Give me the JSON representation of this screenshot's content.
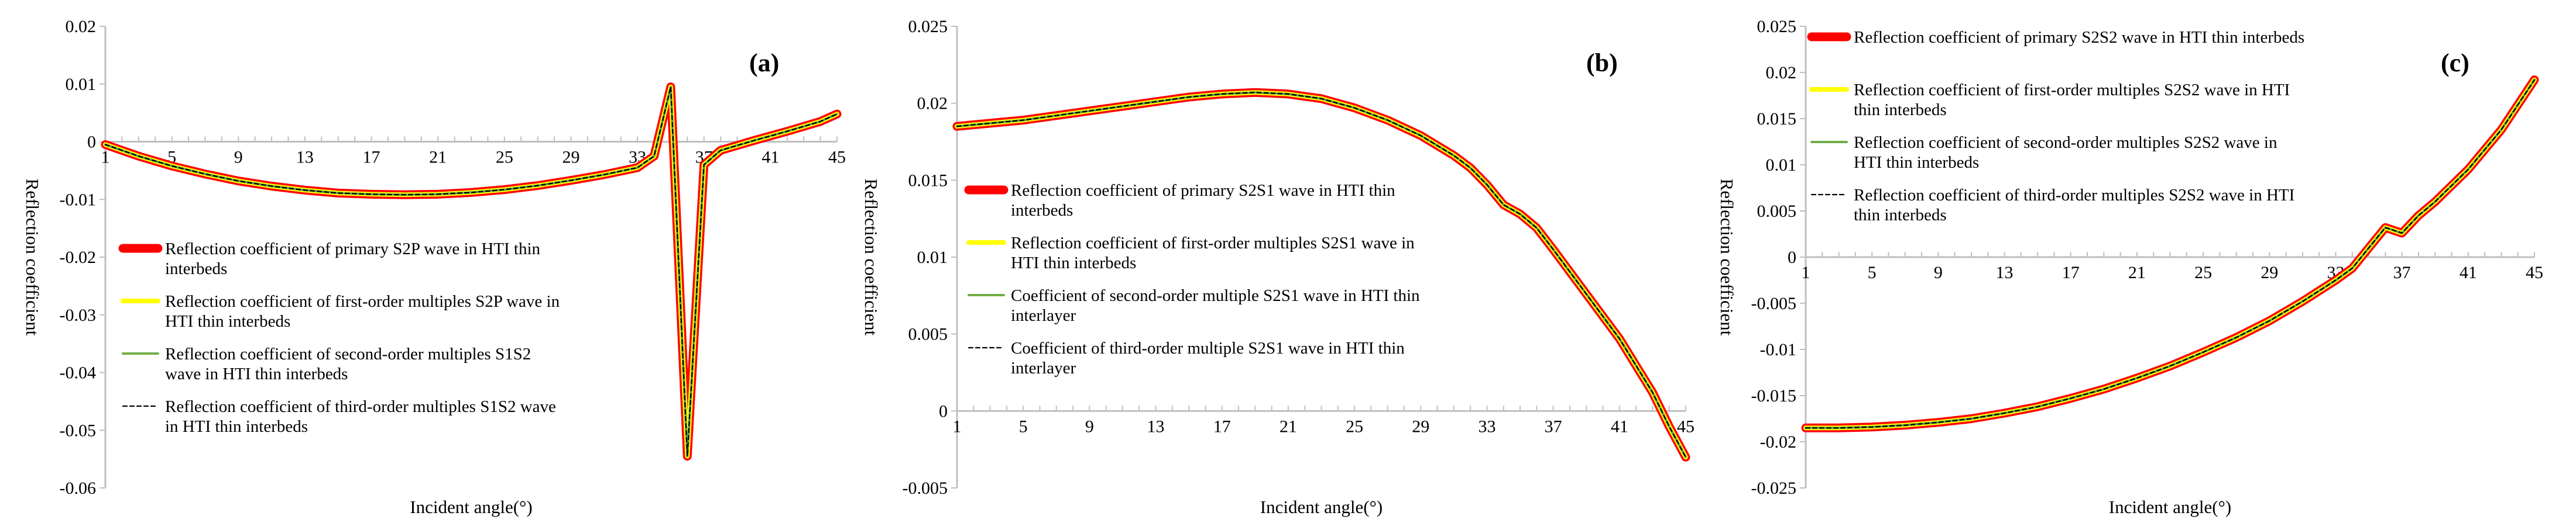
{
  "chart_data": [
    {
      "type": "line",
      "panel_label": "(a)",
      "xlabel": "Incident angle(°)",
      "ylabel": "Reflection coefficient",
      "ylim": [
        -0.06,
        0.02
      ],
      "yticks": [
        0.02,
        0.01,
        0,
        -0.01,
        -0.02,
        -0.03,
        -0.04,
        -0.05,
        -0.06
      ],
      "ytick_labels": [
        "0.02",
        "0.01",
        "0",
        "-0.01",
        "-0.02",
        "-0.03",
        "-0.04",
        "-0.05",
        "-0.06"
      ],
      "xlim": [
        1,
        45
      ],
      "xticks": [
        1,
        5,
        9,
        13,
        17,
        21,
        25,
        29,
        33,
        37,
        41,
        45
      ],
      "xtick_labels": [
        "1",
        "5",
        "9",
        "13",
        "17",
        "21",
        "25",
        "29",
        "33",
        "37",
        "41",
        "45"
      ],
      "x": [
        1,
        3,
        5,
        7,
        9,
        11,
        13,
        15,
        17,
        19,
        21,
        23,
        25,
        27,
        29,
        31,
        33,
        34,
        35,
        36,
        37,
        38,
        40,
        42,
        44,
        45
      ],
      "series": [
        {
          "name": "Reflection coefficient of primary S2P wave in HTI thin interbeds",
          "style": "thick-red",
          "values": [
            -0.0005,
            -0.0025,
            -0.0042,
            -0.0056,
            -0.0068,
            -0.0077,
            -0.0084,
            -0.0089,
            -0.0091,
            -0.0092,
            -0.0091,
            -0.0088,
            -0.0083,
            -0.0076,
            -0.0067,
            -0.0057,
            -0.0045,
            -0.0025,
            0.0095,
            -0.0545,
            -0.004,
            -0.0015,
            0.0002,
            0.0018,
            0.0035,
            0.0048
          ]
        },
        {
          "name": "Reflection coefficient of first-order multiples S2P wave in HTI thin interbeds",
          "style": "yellow",
          "values": [
            -0.0005,
            -0.0025,
            -0.0042,
            -0.0056,
            -0.0068,
            -0.0077,
            -0.0084,
            -0.0089,
            -0.0091,
            -0.0092,
            -0.0091,
            -0.0088,
            -0.0083,
            -0.0076,
            -0.0067,
            -0.0057,
            -0.0045,
            -0.0025,
            0.0095,
            -0.0545,
            -0.004,
            -0.0015,
            0.0002,
            0.0018,
            0.0035,
            0.0048
          ]
        },
        {
          "name": "Reflection coefficient of second-order multiples S1S2 wave in HTI thin interbeds",
          "style": "green",
          "values": [
            -0.0005,
            -0.0025,
            -0.0042,
            -0.0056,
            -0.0068,
            -0.0077,
            -0.0084,
            -0.0089,
            -0.0091,
            -0.0092,
            -0.0091,
            -0.0088,
            -0.0083,
            -0.0076,
            -0.0067,
            -0.0057,
            -0.0045,
            -0.0025,
            0.0095,
            -0.0545,
            -0.004,
            -0.0015,
            0.0002,
            0.0018,
            0.0035,
            0.0048
          ]
        },
        {
          "name": "Reflection coefficient of third-order multiples S1S2 wave in HTI thin interbeds",
          "style": "black-dashed",
          "values": [
            -0.0005,
            -0.0025,
            -0.0042,
            -0.0056,
            -0.0068,
            -0.0077,
            -0.0084,
            -0.0089,
            -0.0091,
            -0.0092,
            -0.0091,
            -0.0088,
            -0.0083,
            -0.0076,
            -0.0067,
            -0.0057,
            -0.0045,
            -0.0025,
            0.0095,
            -0.0545,
            -0.004,
            -0.0015,
            0.0002,
            0.0018,
            0.0035,
            0.0048
          ]
        }
      ],
      "legend_lines": [
        [
          "Reflection coefficient of primary S2P wave in HTI thin",
          "interbeds"
        ],
        [
          "Reflection coefficient of first-order multiples S2P wave in",
          "HTI thin interbeds"
        ],
        [
          "Reflection coefficient of second-order multiples S1S2",
          "wave in HTI thin interbeds"
        ],
        [
          "Reflection coefficient of third-order multiples S1S2 wave",
          "in HTI thin interbeds"
        ]
      ]
    },
    {
      "type": "line",
      "panel_label": "(b)",
      "xlabel": "Incident angle(°)",
      "ylabel": "Reflection coefficient",
      "ylim": [
        -0.005,
        0.025
      ],
      "yticks": [
        0.025,
        0.02,
        0.015,
        0.01,
        0.005,
        0,
        -0.005
      ],
      "ytick_labels": [
        "0.025",
        "0.02",
        "0.015",
        "0.01",
        "0.005",
        "0",
        "-0.005"
      ],
      "xlim": [
        1,
        45
      ],
      "xticks": [
        1,
        5,
        9,
        13,
        17,
        21,
        25,
        29,
        33,
        37,
        41,
        45
      ],
      "xtick_labels": [
        "1",
        "5",
        "9",
        "13",
        "17",
        "21",
        "25",
        "29",
        "33",
        "37",
        "41",
        "45"
      ],
      "x": [
        1,
        3,
        5,
        7,
        9,
        11,
        13,
        15,
        17,
        19,
        21,
        23,
        25,
        27,
        29,
        31,
        32,
        33,
        34,
        35,
        36,
        37,
        39,
        41,
        43,
        44,
        45
      ],
      "series": [
        {
          "name": "Reflection coefficient of primary S2S1 wave in HTI thin interbeds",
          "style": "thick-red",
          "values": [
            0.0185,
            0.0187,
            0.0189,
            0.0192,
            0.0195,
            0.0198,
            0.0201,
            0.0204,
            0.0206,
            0.0207,
            0.0206,
            0.0203,
            0.0197,
            0.0189,
            0.0179,
            0.0166,
            0.0158,
            0.0147,
            0.0134,
            0.0128,
            0.0119,
            0.0105,
            0.0076,
            0.0047,
            0.0012,
            -0.001,
            -0.003
          ]
        },
        {
          "name": "Reflection coefficient of first-order multiples S2S1 wave in HTI thin interbeds",
          "style": "yellow",
          "values": [
            0.0185,
            0.0187,
            0.0189,
            0.0192,
            0.0195,
            0.0198,
            0.0201,
            0.0204,
            0.0206,
            0.0207,
            0.0206,
            0.0203,
            0.0197,
            0.0189,
            0.0179,
            0.0166,
            0.0158,
            0.0147,
            0.0134,
            0.0128,
            0.0119,
            0.0105,
            0.0076,
            0.0047,
            0.0012,
            -0.001,
            -0.003
          ]
        },
        {
          "name": "Coefficient of second-order multiple S2S1 wave in HTI thin interlayer",
          "style": "green",
          "values": [
            0.0185,
            0.0187,
            0.0189,
            0.0192,
            0.0195,
            0.0198,
            0.0201,
            0.0204,
            0.0206,
            0.0207,
            0.0206,
            0.0203,
            0.0197,
            0.0189,
            0.0179,
            0.0166,
            0.0158,
            0.0147,
            0.0134,
            0.0128,
            0.0119,
            0.0105,
            0.0076,
            0.0047,
            0.0012,
            -0.001,
            -0.003
          ]
        },
        {
          "name": "Coefficient of third-order multiple S2S1 wave in HTI thin interlayer",
          "style": "black-dashed",
          "values": [
            0.0185,
            0.0187,
            0.0189,
            0.0192,
            0.0195,
            0.0198,
            0.0201,
            0.0204,
            0.0206,
            0.0207,
            0.0206,
            0.0203,
            0.0197,
            0.0189,
            0.0179,
            0.0166,
            0.0158,
            0.0147,
            0.0134,
            0.0128,
            0.0119,
            0.0105,
            0.0076,
            0.0047,
            0.0012,
            -0.001,
            -0.003
          ]
        }
      ],
      "legend_lines": [
        [
          "Reflection coefficient of primary S2S1 wave in HTI thin",
          "interbeds"
        ],
        [
          "Reflection coefficient of first-order multiples S2S1 wave in",
          "HTI thin interbeds"
        ],
        [
          "Coefficient of second-order multiple S2S1 wave in HTI thin",
          "interlayer"
        ],
        [
          "Coefficient of third-order multiple S2S1 wave in HTI thin",
          "interlayer"
        ]
      ]
    },
    {
      "type": "line",
      "panel_label": "(c)",
      "xlabel": "Incident angle(°)",
      "ylabel": "Reflection coefficient",
      "ylim": [
        -0.025,
        0.025
      ],
      "yticks": [
        0.025,
        0.02,
        0.015,
        0.01,
        0.005,
        0,
        -0.005,
        -0.01,
        -0.015,
        -0.02,
        -0.025
      ],
      "ytick_labels": [
        "0.025",
        "0.02",
        "0.015",
        "0.01",
        "0.005",
        "0",
        "-0.005",
        "-0.01",
        "-0.015",
        "-0.02",
        "-0.025"
      ],
      "xlim": [
        1,
        45
      ],
      "xticks": [
        1,
        5,
        9,
        13,
        17,
        21,
        25,
        29,
        33,
        37,
        41,
        45
      ],
      "xtick_labels": [
        "1",
        "5",
        "9",
        "13",
        "17",
        "21",
        "25",
        "29",
        "33",
        "37",
        "41",
        "45"
      ],
      "x": [
        1,
        3,
        5,
        7,
        9,
        11,
        13,
        15,
        17,
        19,
        21,
        23,
        25,
        27,
        29,
        31,
        33,
        34,
        35,
        36,
        37,
        38,
        39,
        41,
        43,
        45
      ],
      "series": [
        {
          "name": "Reflection coefficient of primary S2S2 wave in HTI thin interbeds",
          "style": "thick-red",
          "values": [
            -0.0185,
            -0.0185,
            -0.0184,
            -0.0182,
            -0.0179,
            -0.0175,
            -0.0169,
            -0.0162,
            -0.0153,
            -0.0143,
            -0.0131,
            -0.0118,
            -0.0103,
            -0.0087,
            -0.0069,
            -0.0048,
            -0.0025,
            -0.0012,
            0.001,
            0.0032,
            0.0026,
            0.0045,
            0.006,
            0.0095,
            0.0138,
            0.0192
          ]
        },
        {
          "name": "Reflection coefficient of first-order multiples S2S2 wave in HTI thin interbeds",
          "style": "yellow",
          "values": [
            -0.0185,
            -0.0185,
            -0.0184,
            -0.0182,
            -0.0179,
            -0.0175,
            -0.0169,
            -0.0162,
            -0.0153,
            -0.0143,
            -0.0131,
            -0.0118,
            -0.0103,
            -0.0087,
            -0.0069,
            -0.0048,
            -0.0025,
            -0.0012,
            0.001,
            0.0032,
            0.0026,
            0.0045,
            0.006,
            0.0095,
            0.0138,
            0.0192
          ]
        },
        {
          "name": "Reflection coefficient of second-order multiples S2S2 wave in HTI thin interbeds",
          "style": "green",
          "values": [
            -0.0185,
            -0.0185,
            -0.0184,
            -0.0182,
            -0.0179,
            -0.0175,
            -0.0169,
            -0.0162,
            -0.0153,
            -0.0143,
            -0.0131,
            -0.0118,
            -0.0103,
            -0.0087,
            -0.0069,
            -0.0048,
            -0.0025,
            -0.0012,
            0.001,
            0.0032,
            0.0026,
            0.0045,
            0.006,
            0.0095,
            0.0138,
            0.0192
          ]
        },
        {
          "name": "Reflection coefficient of third-order multiples S2S2 wave in HTI thin interbeds",
          "style": "black-dashed",
          "values": [
            -0.0185,
            -0.0185,
            -0.0184,
            -0.0182,
            -0.0179,
            -0.0175,
            -0.0169,
            -0.0162,
            -0.0153,
            -0.0143,
            -0.0131,
            -0.0118,
            -0.0103,
            -0.0087,
            -0.0069,
            -0.0048,
            -0.0025,
            -0.0012,
            0.001,
            0.0032,
            0.0026,
            0.0045,
            0.006,
            0.0095,
            0.0138,
            0.0192
          ]
        }
      ],
      "legend_lines": [
        [
          "Reflection coefficient of primary S2S2 wave in HTI thin interbeds"
        ],
        [
          "Reflection coefficient of first-order multiples S2S2 wave in HTI",
          "thin interbeds"
        ],
        [
          "Reflection coefficient of second-order multiples S2S2 wave in",
          "HTI thin interbeds"
        ],
        [
          "Reflection coefficient of third-order multiples S2S2 wave in HTI",
          "thin interbeds"
        ]
      ]
    }
  ],
  "colors": {
    "primary": "#ff0000",
    "first_order": "#ffff00",
    "second_order": "#70ad47",
    "third_order": "#000000",
    "axis": "#bfbfbf"
  }
}
